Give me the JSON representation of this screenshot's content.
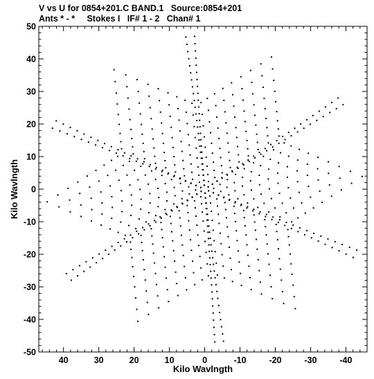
{
  "header": {
    "title_line1": "V vs U for 0854+201.C BAND.1   Source:0854+201",
    "title_line2": "Ants * - *     Stokes I   IF# 1 - 2   Chan# 1"
  },
  "chart_data": {
    "type": "scatter",
    "title": "V vs U for 0854+201.C BAND.1   Source:0854+201",
    "subtitle": "Ants * - *     Stokes I   IF# 1 - 2   Chan# 1",
    "xlabel": "Kilo Wavlngth",
    "ylabel": "Kilo Wavlngth",
    "xlim": [
      47,
      -46
    ],
    "ylim": [
      -50,
      50
    ],
    "x_reversed": true,
    "x_ticks": [
      "40",
      "30",
      "20",
      "10",
      "0",
      "-10",
      "-20",
      "-30",
      "-40"
    ],
    "x_tick_values": [
      40,
      30,
      20,
      10,
      0,
      -10,
      -20,
      -30,
      -40
    ],
    "y_ticks": [
      "50",
      "40",
      "30",
      "20",
      "10",
      "0",
      "-10",
      "-20",
      "-30",
      "-40",
      "-50"
    ],
    "y_tick_values": [
      50,
      40,
      30,
      20,
      10,
      0,
      -10,
      -20,
      -30,
      -40,
      -50
    ],
    "grid": false,
    "marker": "small-dot",
    "pattern": "six-armed star of uv tracks (VLA snapshot coverage), arms at roughly 85, 145, 205, 265, 325 and 25 degrees in u,v",
    "arm_tips": [
      {
        "u": -5,
        "v": 47
      },
      {
        "u": 30,
        "v": -40
      },
      {
        "u": -40,
        "v": 33
      },
      {
        "u": 44,
        "v": 14
      },
      {
        "u": -44,
        "v": -14
      },
      {
        "u": 5,
        "v": -47
      }
    ]
  }
}
